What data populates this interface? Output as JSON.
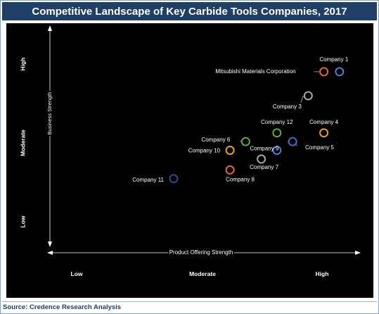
{
  "header": {
    "title": "Competitive Landscape of Key Carbide Tools Companies, 2017"
  },
  "footer": {
    "source": "Source: Credence Research Analysis"
  },
  "chart_data": {
    "type": "scatter",
    "title": "Competitive Landscape of Key Carbide Tools Companies, 2017",
    "xlabel": "Product Offering Strength",
    "ylabel": "Business Strength",
    "x_ticks": [
      "Low",
      "Moderate",
      "High"
    ],
    "y_ticks": [
      "Low",
      "Moderate",
      "High"
    ],
    "xlim": [
      0,
      10
    ],
    "ylim": [
      0,
      10
    ],
    "grid": false,
    "background": "#000000",
    "points": [
      {
        "label": "Company 1",
        "x": 9.3,
        "y": 8.1,
        "color": "#4a7fd0"
      },
      {
        "label": "Mitsubishi Materials Corporation",
        "x": 8.8,
        "y": 8.1,
        "color": "#e8662a"
      },
      {
        "label": "Company 3",
        "x": 8.3,
        "y": 7.0,
        "color": "#a6a6a6"
      },
      {
        "label": "Company 12",
        "x": 7.3,
        "y": 5.3,
        "color": "#62a83c"
      },
      {
        "label": "Company 4",
        "x": 8.8,
        "y": 5.3,
        "color": "#e8a215"
      },
      {
        "label": "Company 5",
        "x": 7.8,
        "y": 4.9,
        "color": "#3e6dc0"
      },
      {
        "label": "Company 6",
        "x": 6.3,
        "y": 4.9,
        "color": "#62a83c"
      },
      {
        "label": "Company 9",
        "x": 7.3,
        "y": 4.5,
        "color": "#4a7fd0"
      },
      {
        "label": "Company 10",
        "x": 5.8,
        "y": 4.5,
        "color": "#e8a215"
      },
      {
        "label": "Company 7",
        "x": 6.8,
        "y": 4.1,
        "color": "#a6a6a6"
      },
      {
        "label": "Company 8",
        "x": 5.8,
        "y": 3.6,
        "color": "#e8662a"
      },
      {
        "label": "Company 11",
        "x": 4.0,
        "y": 3.2,
        "color": "#2a4e8c"
      }
    ]
  }
}
